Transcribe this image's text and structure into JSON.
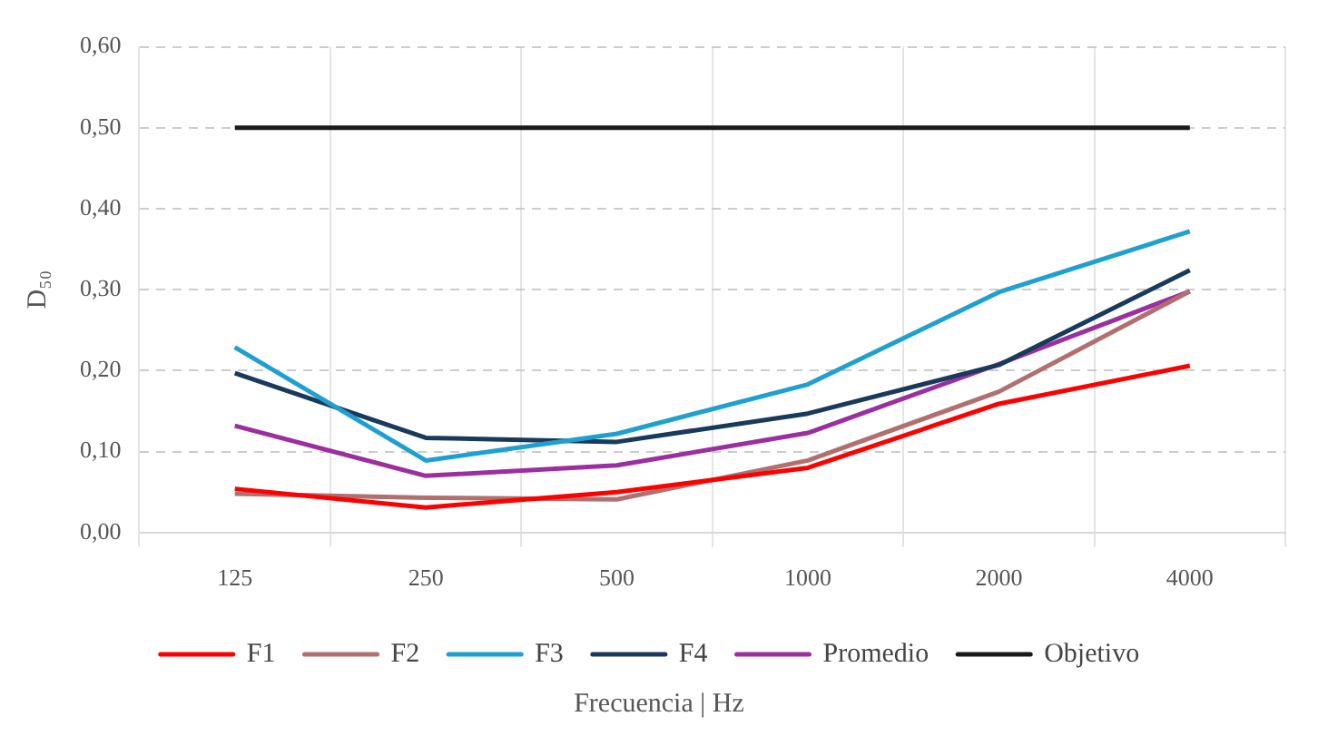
{
  "chart_data": {
    "type": "line",
    "xlabel": "Frecuencia  | Hz",
    "ylabel": "D₅₀",
    "categories": [
      "125",
      "250",
      "500",
      "1000",
      "2000",
      "4000"
    ],
    "series": [
      {
        "name": "F1",
        "color": "#ff0000",
        "values": [
          0.054,
          0.031,
          0.05,
          0.08,
          0.159,
          0.206
        ]
      },
      {
        "name": "F2",
        "color": "#b07070",
        "values": [
          0.048,
          0.043,
          0.041,
          0.089,
          0.174,
          0.298
        ]
      },
      {
        "name": "F3",
        "color": "#1fa0d0",
        "values": [
          0.229,
          0.089,
          0.122,
          0.183,
          0.297,
          0.372
        ]
      },
      {
        "name": "F4",
        "color": "#1a3a5c",
        "values": [
          0.197,
          0.117,
          0.112,
          0.147,
          0.207,
          0.324
        ]
      },
      {
        "name": "Promedio",
        "color": "#9b2fa0",
        "values": [
          0.132,
          0.07,
          0.083,
          0.123,
          0.208,
          0.298
        ]
      },
      {
        "name": "Objetivo",
        "color": "#1a1a1a",
        "values": [
          0.5,
          0.5,
          0.5,
          0.5,
          0.5,
          0.5
        ]
      }
    ],
    "ylim": [
      0,
      0.6
    ],
    "yticks": [
      {
        "value": 0,
        "label": "0,00"
      },
      {
        "value": 0.1,
        "label": "0,10"
      },
      {
        "value": 0.2,
        "label": "0,20"
      },
      {
        "value": 0.3,
        "label": "0,30"
      },
      {
        "value": 0.4,
        "label": "0,40"
      },
      {
        "value": 0.5,
        "label": "0,50"
      },
      {
        "value": 0.6,
        "label": "0,60"
      }
    ],
    "grid": true,
    "legend": "bottom",
    "marker": "none",
    "line_style": "solid"
  }
}
